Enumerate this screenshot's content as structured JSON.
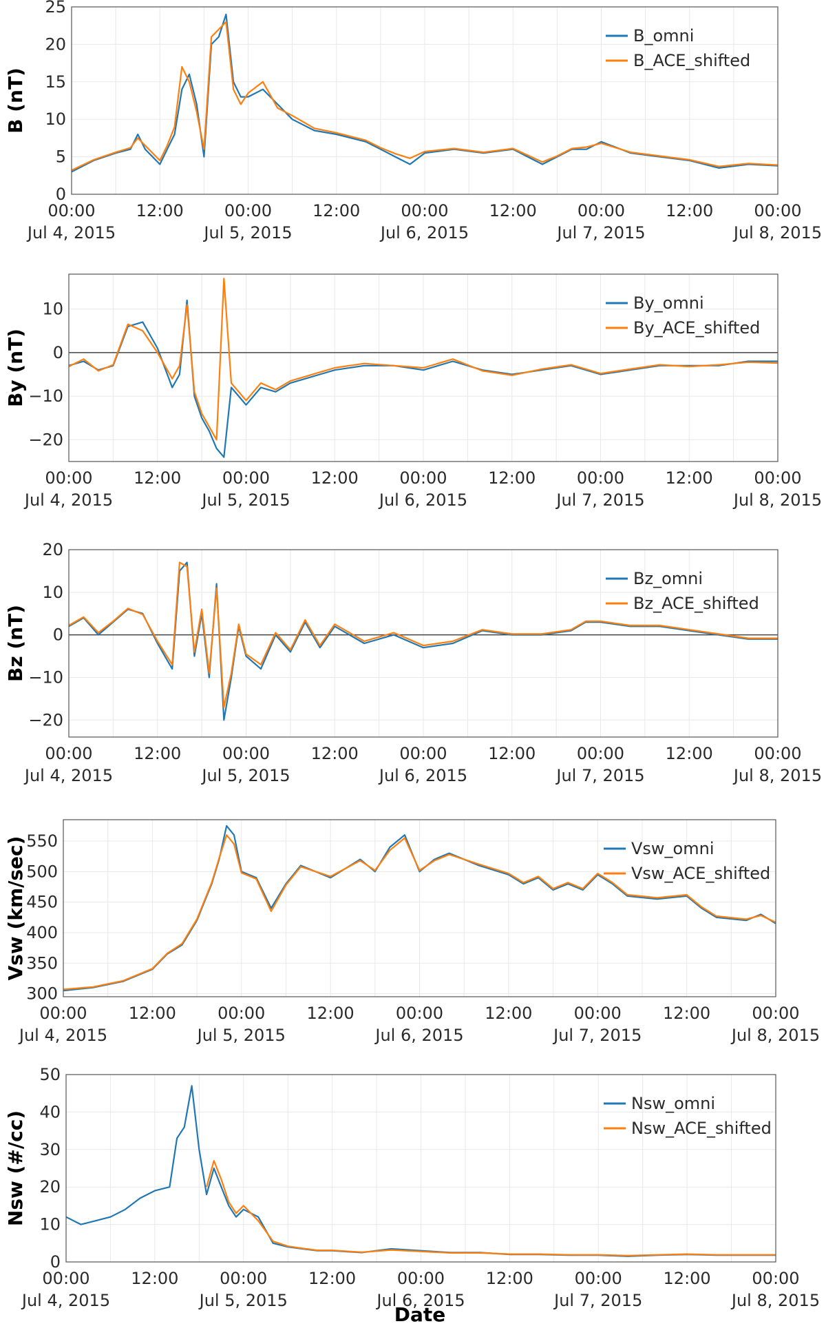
{
  "colors": {
    "omni": "#1f77b4",
    "ace": "#ff7f0e"
  },
  "x_axis": {
    "ticks": [
      {
        "time": "00:00",
        "date": "Jul 4, 2015"
      },
      {
        "time": "12:00",
        "date": ""
      },
      {
        "time": "00:00",
        "date": "Jul 5, 2015"
      },
      {
        "time": "12:00",
        "date": ""
      },
      {
        "time": "00:00",
        "date": "Jul 6, 2015"
      },
      {
        "time": "12:00",
        "date": ""
      },
      {
        "time": "00:00",
        "date": "Jul 7, 2015"
      },
      {
        "time": "12:00",
        "date": ""
      },
      {
        "time": "00:00",
        "date": "Jul 8, 2015"
      }
    ],
    "title": "Date"
  },
  "chart_data": [
    {
      "type": "line",
      "ylabel": "B (nT)",
      "ylim": [
        0,
        25
      ],
      "yticks": [
        0,
        5,
        10,
        15,
        20,
        25
      ],
      "zero_line": false,
      "xlim": [
        "2015-07-04 00:00",
        "2015-07-08 00:00"
      ],
      "legend": "top-right",
      "series": [
        {
          "name": "B_omni",
          "x_hours": [
            0,
            3,
            6,
            8,
            9,
            10,
            12,
            13,
            14,
            15,
            16,
            17,
            18,
            19,
            20,
            21,
            22,
            23,
            24,
            26,
            28,
            30,
            33,
            36,
            40,
            42,
            44,
            46,
            48,
            52,
            56,
            60,
            62,
            64,
            66,
            68,
            70,
            72,
            76,
            80,
            84,
            88,
            92,
            96
          ],
          "values": [
            3,
            4.5,
            5.5,
            6,
            8,
            6,
            4,
            6,
            8,
            14,
            16,
            12,
            5,
            20,
            21,
            24,
            15,
            13,
            13,
            14,
            12,
            10,
            8.5,
            8,
            7,
            6,
            5,
            4,
            5.5,
            6,
            5.5,
            6,
            5,
            4,
            5,
            6,
            6,
            7,
            5.5,
            5,
            4.5,
            3.5,
            4,
            3.8
          ]
        },
        {
          "name": "B_ACE_shifted",
          "x_hours": [
            0,
            3,
            6,
            8,
            9,
            10,
            12,
            13,
            14,
            15,
            16,
            17,
            18,
            19,
            20,
            21,
            22,
            23,
            24,
            26,
            28,
            30,
            33,
            36,
            40,
            42,
            44,
            46,
            48,
            52,
            56,
            60,
            62,
            64,
            66,
            68,
            70,
            72,
            76,
            80,
            84,
            88,
            92,
            96
          ],
          "values": [
            3.2,
            4.6,
            5.6,
            6.2,
            7.5,
            6.5,
            4.5,
            6.5,
            9,
            17,
            15,
            11,
            6,
            21,
            22,
            23,
            14,
            12,
            13.5,
            15,
            11.5,
            10.5,
            8.8,
            8.2,
            7.2,
            6.2,
            5.4,
            4.8,
            5.7,
            6.1,
            5.6,
            6.1,
            5.2,
            4.3,
            5.1,
            6.1,
            6.3,
            6.8,
            5.6,
            5.1,
            4.6,
            3.7,
            4.1,
            3.9
          ]
        }
      ]
    },
    {
      "type": "line",
      "ylabel": "By (nT)",
      "ylim": [
        -25,
        18
      ],
      "yticks": [
        -20,
        -10,
        0,
        10
      ],
      "zero_line": true,
      "xlim": [
        "2015-07-04 00:00",
        "2015-07-08 00:00"
      ],
      "legend": "top-right",
      "series": [
        {
          "name": "By_omni",
          "x_hours": [
            0,
            2,
            4,
            6,
            8,
            10,
            12,
            14,
            15,
            16,
            17,
            18,
            19,
            20,
            21,
            22,
            23,
            24,
            26,
            28,
            30,
            32,
            34,
            36,
            40,
            44,
            48,
            52,
            56,
            60,
            64,
            68,
            72,
            76,
            80,
            84,
            88,
            92,
            96
          ],
          "values": [
            -3,
            -2,
            -4,
            -3,
            6,
            7,
            1,
            -8,
            -5,
            12,
            -10,
            -15,
            -18,
            -22,
            -24,
            -8,
            -10,
            -12,
            -8,
            -9,
            -7,
            -6,
            -5,
            -4,
            -3,
            -3,
            -4,
            -2,
            -4,
            -5,
            -4,
            -3,
            -5,
            -4,
            -3,
            -3,
            -3,
            -2,
            -2
          ]
        },
        {
          "name": "By_ACE_shifted",
          "x_hours": [
            0,
            2,
            4,
            6,
            8,
            10,
            12,
            14,
            15,
            16,
            17,
            18,
            19,
            20,
            21,
            22,
            23,
            24,
            26,
            28,
            30,
            32,
            34,
            36,
            40,
            44,
            48,
            52,
            56,
            60,
            64,
            68,
            72,
            76,
            80,
            84,
            88,
            92,
            96
          ],
          "values": [
            -3.2,
            -1.5,
            -4.2,
            -2.8,
            6.5,
            5,
            0,
            -6,
            -3,
            11,
            -9,
            -14,
            -17,
            -20,
            17,
            -7,
            -9,
            -11,
            -7,
            -8.5,
            -6.5,
            -5.5,
            -4.5,
            -3.5,
            -2.5,
            -3,
            -3.5,
            -1.5,
            -4.2,
            -5.2,
            -3.8,
            -2.8,
            -4.8,
            -3.8,
            -2.8,
            -3.2,
            -2.8,
            -2.2,
            -2.4
          ]
        }
      ]
    },
    {
      "type": "line",
      "ylabel": "Bz (nT)",
      "ylim": [
        -24,
        20
      ],
      "yticks": [
        -20,
        -10,
        0,
        10,
        20
      ],
      "zero_line": true,
      "xlim": [
        "2015-07-04 00:00",
        "2015-07-08 00:00"
      ],
      "legend": "top-right",
      "series": [
        {
          "name": "Bz_omni",
          "x_hours": [
            0,
            2,
            4,
            6,
            8,
            10,
            12,
            14,
            15,
            16,
            17,
            18,
            19,
            20,
            21,
            22,
            23,
            24,
            26,
            28,
            30,
            32,
            34,
            36,
            40,
            44,
            48,
            52,
            56,
            60,
            64,
            68,
            70,
            72,
            76,
            80,
            84,
            88,
            92,
            96
          ],
          "values": [
            2,
            4,
            0,
            3,
            6,
            5,
            -2,
            -8,
            15,
            17,
            -5,
            5,
            -10,
            12,
            -20,
            -10,
            2,
            -5,
            -8,
            0,
            -4,
            3,
            -3,
            2,
            -2,
            0,
            -3,
            -2,
            1,
            0,
            0,
            1,
            3,
            3,
            2,
            2,
            1,
            0,
            -1,
            -1
          ]
        },
        {
          "name": "Bz_ACE_shifted",
          "x_hours": [
            0,
            2,
            4,
            6,
            8,
            10,
            12,
            14,
            15,
            16,
            17,
            18,
            19,
            20,
            21,
            22,
            23,
            24,
            26,
            28,
            30,
            32,
            34,
            36,
            40,
            44,
            48,
            52,
            56,
            60,
            64,
            68,
            70,
            72,
            76,
            80,
            84,
            88,
            92,
            96
          ],
          "values": [
            2.2,
            4.2,
            0.5,
            3.2,
            6.2,
            4.8,
            -1.5,
            -7,
            17,
            16,
            -4,
            6,
            -9,
            11,
            -17,
            -9,
            2.5,
            -4.5,
            -7,
            0.5,
            -3.5,
            3.5,
            -2.5,
            2.5,
            -1.5,
            0.5,
            -2.5,
            -1.5,
            1.2,
            0.2,
            0.2,
            1.2,
            3.2,
            3.2,
            2.2,
            2.2,
            1.2,
            0.2,
            -0.8,
            -0.8
          ]
        }
      ]
    },
    {
      "type": "line",
      "ylabel": "Vsw (km/sec)",
      "ylim": [
        295,
        585
      ],
      "yticks": [
        300,
        350,
        400,
        450,
        500,
        550
      ],
      "zero_line": false,
      "xlim": [
        "2015-07-04 00:00",
        "2015-07-08 00:00"
      ],
      "legend": "top-right",
      "series": [
        {
          "name": "Vsw_omni",
          "x_hours": [
            0,
            4,
            8,
            10,
            12,
            14,
            16,
            18,
            19,
            20,
            21,
            22,
            23,
            24,
            26,
            28,
            30,
            32,
            36,
            40,
            42,
            44,
            46,
            48,
            50,
            52,
            56,
            60,
            62,
            64,
            66,
            68,
            70,
            72,
            74,
            76,
            80,
            84,
            86,
            88,
            92,
            94,
            96
          ],
          "values": [
            305,
            310,
            320,
            330,
            340,
            365,
            380,
            420,
            450,
            480,
            520,
            575,
            560,
            500,
            490,
            440,
            480,
            510,
            490,
            520,
            500,
            540,
            560,
            500,
            520,
            530,
            510,
            495,
            480,
            490,
            470,
            480,
            470,
            495,
            480,
            460,
            455,
            460,
            440,
            425,
            420,
            430,
            415
          ]
        },
        {
          "name": "Vsw_ACE_shifted",
          "x_hours": [
            0,
            4,
            8,
            10,
            12,
            14,
            16,
            18,
            19,
            20,
            21,
            22,
            23,
            24,
            26,
            28,
            30,
            32,
            36,
            40,
            42,
            44,
            46,
            48,
            50,
            52,
            56,
            60,
            62,
            64,
            66,
            68,
            70,
            72,
            74,
            76,
            80,
            84,
            86,
            88,
            92,
            94,
            96
          ],
          "values": [
            307,
            311,
            321,
            331,
            341,
            366,
            382,
            422,
            452,
            482,
            522,
            560,
            545,
            498,
            488,
            435,
            478,
            508,
            492,
            518,
            502,
            535,
            555,
            502,
            518,
            528,
            512,
            497,
            482,
            492,
            472,
            482,
            472,
            497,
            482,
            462,
            457,
            462,
            442,
            427,
            422,
            428,
            417
          ]
        }
      ]
    },
    {
      "type": "line",
      "ylabel": "Nsw (#/cc)",
      "ylim": [
        0,
        50
      ],
      "yticks": [
        0,
        10,
        20,
        30,
        40,
        50
      ],
      "zero_line": false,
      "xlim": [
        "2015-07-04 00:00",
        "2015-07-08 00:00"
      ],
      "legend": "top-right",
      "xlabel": "Date",
      "series": [
        {
          "name": "Nsw_omni",
          "x_hours": [
            0,
            2,
            4,
            6,
            8,
            10,
            12,
            14,
            15,
            16,
            17,
            18,
            19,
            20,
            21,
            22,
            23,
            24,
            26,
            28,
            30,
            32,
            34,
            36,
            40,
            44,
            48,
            52,
            56,
            60,
            64,
            68,
            72,
            76,
            80,
            84,
            88,
            92,
            96
          ],
          "values": [
            12,
            10,
            11,
            12,
            14,
            17,
            19,
            20,
            33,
            36,
            47,
            30,
            18,
            25,
            20,
            15,
            12,
            14,
            12,
            5,
            4,
            3.5,
            3,
            3,
            2.5,
            3.5,
            3,
            2.5,
            2.5,
            2,
            2,
            1.8,
            1.8,
            1.5,
            1.8,
            2,
            1.8,
            1.8,
            1.8
          ]
        },
        {
          "name": "Nsw_ACE_shifted",
          "x_hours": [
            19,
            20,
            21,
            22,
            23,
            24,
            26,
            28,
            30,
            32,
            34,
            36,
            40,
            44,
            48,
            52,
            56,
            60,
            64,
            68,
            72,
            76,
            80,
            84,
            88,
            92,
            96
          ],
          "values": [
            20,
            27,
            22,
            16,
            13,
            15,
            11,
            5.5,
            4.2,
            3.6,
            3.1,
            3.1,
            2.6,
            3.2,
            2.8,
            2.4,
            2.4,
            2.1,
            2.1,
            1.9,
            1.9,
            1.7,
            1.9,
            2.1,
            1.9,
            1.9,
            1.9
          ]
        }
      ]
    }
  ]
}
